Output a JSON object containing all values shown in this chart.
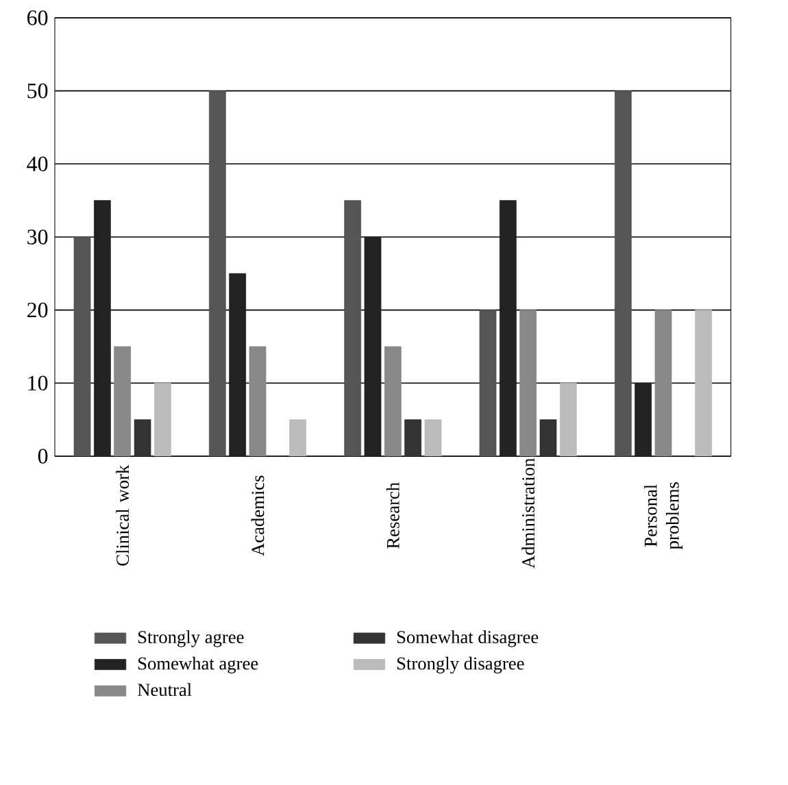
{
  "chart_data": {
    "type": "bar",
    "categories": [
      "Clinical work",
      "Academics",
      "Research",
      "Administration",
      "Personal problems"
    ],
    "series": [
      {
        "name": "Strongly agree",
        "color": "#555555",
        "values": [
          30,
          50,
          35,
          20,
          50
        ]
      },
      {
        "name": "Somewhat agree",
        "color": "#222222",
        "values": [
          35,
          25,
          30,
          35,
          10
        ]
      },
      {
        "name": "Neutral",
        "color": "#888888",
        "values": [
          15,
          15,
          15,
          20,
          20
        ]
      },
      {
        "name": "Somewhat disagree",
        "color": "#333333",
        "values": [
          5,
          0,
          5,
          5,
          0
        ]
      },
      {
        "name": "Strongly disagree",
        "color": "#bbbbbb",
        "values": [
          10,
          5,
          5,
          10,
          20
        ]
      }
    ],
    "ylim": [
      0,
      60
    ],
    "yticks": [
      0,
      10,
      20,
      30,
      40,
      50,
      60
    ],
    "grid": "y",
    "legend": "bottom"
  }
}
